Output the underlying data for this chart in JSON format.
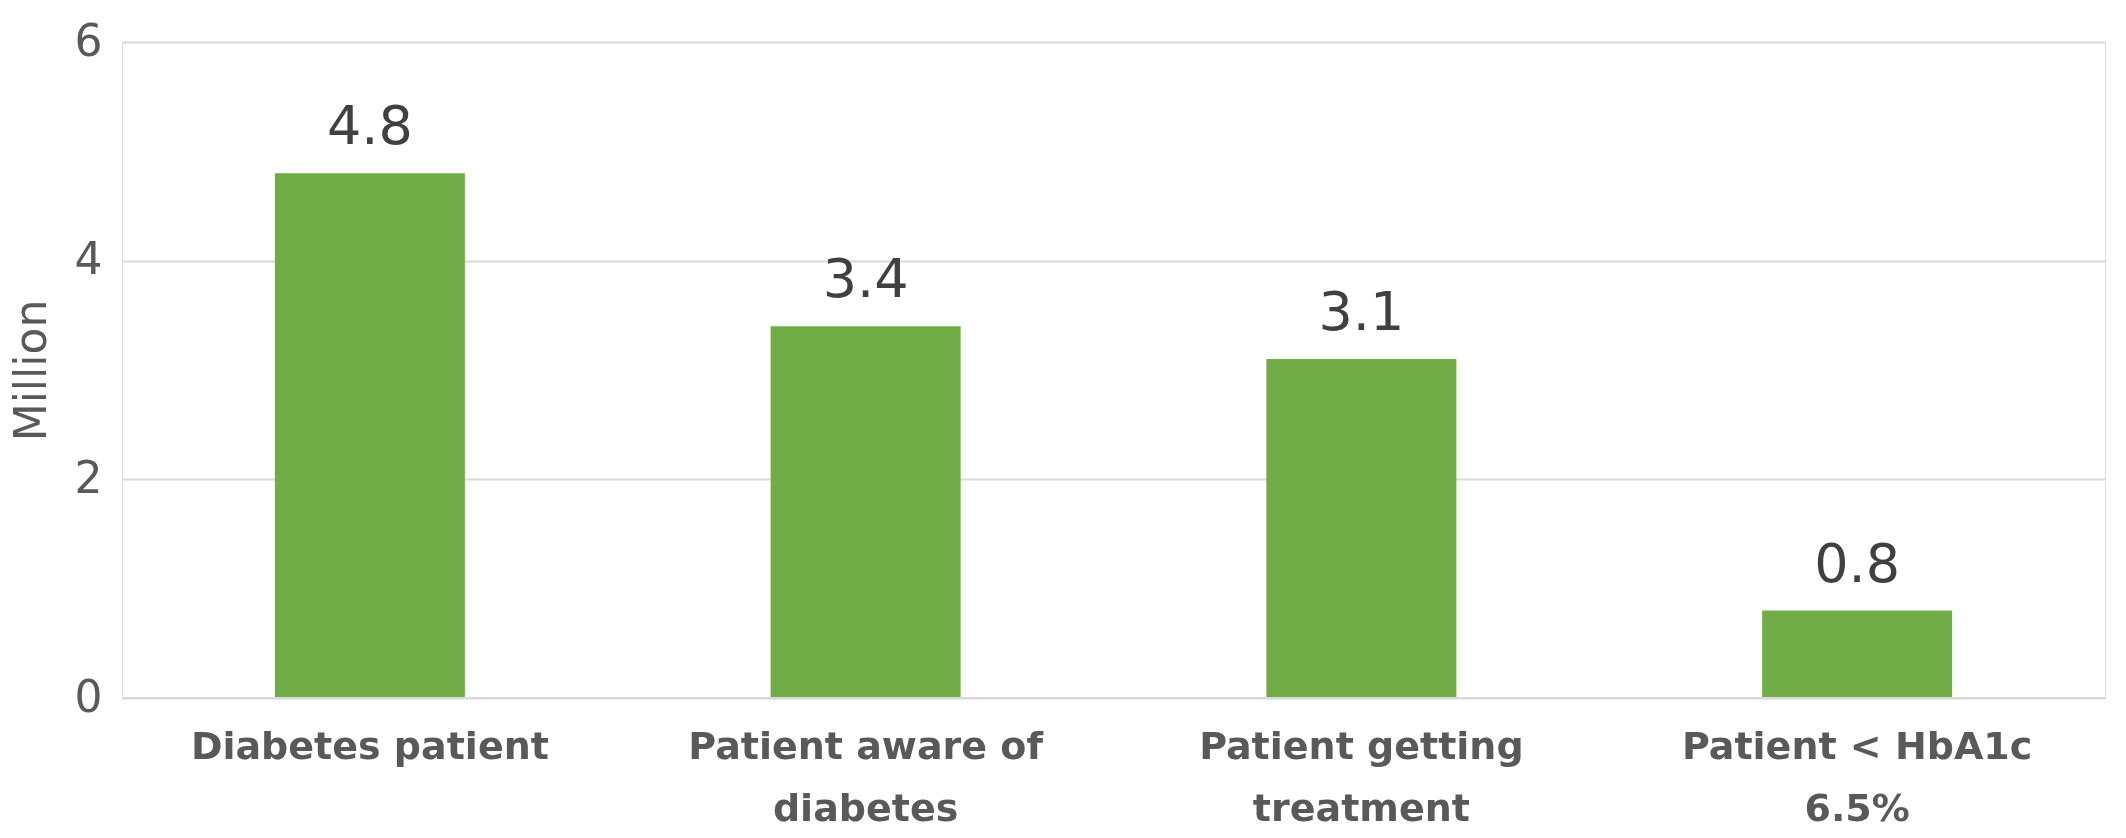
{
  "chart_data": {
    "type": "bar",
    "ylabel": "Million",
    "categories": [
      "Diabetes patient",
      "Patient aware of diabetes",
      "Patient getting treatment",
      "Patient < HbA1c 6.5%"
    ],
    "values": [
      4.8,
      3.4,
      3.1,
      0.8
    ],
    "color": "#70ad47",
    "ylim": [
      0,
      6
    ],
    "yticks": [
      0,
      2,
      4,
      6
    ],
    "grid": "y",
    "data_labels": true
  }
}
